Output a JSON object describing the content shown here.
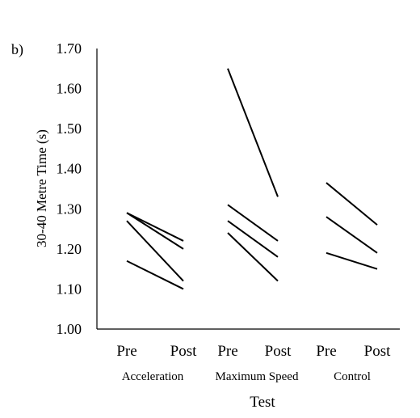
{
  "chart_data": {
    "type": "line",
    "panel_label": "b)",
    "ylabel": "30-40 Metre Time (s)",
    "xlabel": "Test",
    "ylim": [
      1.0,
      1.7
    ],
    "yticks": [
      "1.00",
      "1.10",
      "1.20",
      "1.30",
      "1.40",
      "1.50",
      "1.60",
      "1.70"
    ],
    "grid": false,
    "groups": [
      {
        "name": "Acceleration",
        "categories": [
          "Pre",
          "Post"
        ],
        "lines": [
          [
            1.29,
            1.22
          ],
          [
            1.29,
            1.2
          ],
          [
            1.27,
            1.12
          ],
          [
            1.17,
            1.1
          ]
        ]
      },
      {
        "name": "Maximum Speed",
        "categories": [
          "Pre",
          "Post"
        ],
        "lines": [
          [
            1.65,
            1.33
          ],
          [
            1.31,
            1.22
          ],
          [
            1.27,
            1.18
          ],
          [
            1.24,
            1.12
          ]
        ]
      },
      {
        "name": "Control",
        "categories": [
          "Pre",
          "Post"
        ],
        "lines": [
          [
            1.365,
            1.26
          ],
          [
            1.28,
            1.19
          ],
          [
            1.19,
            1.15
          ]
        ]
      }
    ]
  }
}
